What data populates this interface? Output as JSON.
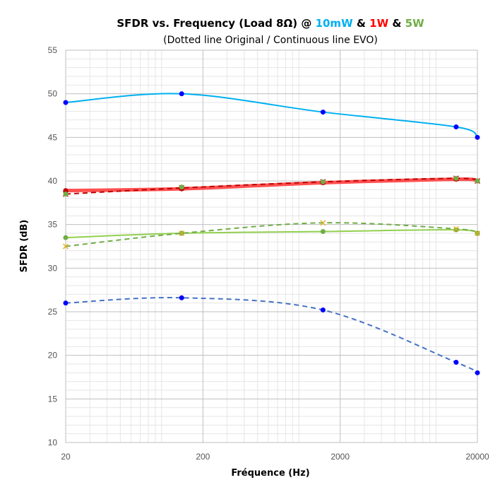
{
  "chart_data": {
    "type": "line",
    "title": {
      "prefix": "SFDR vs. Frequency (Load 8Ω) @ ",
      "segments": [
        {
          "text": "10mW",
          "color": "#00b0f0"
        },
        {
          "text": " & ",
          "color": "#000000"
        },
        {
          "text": "1W",
          "color": "#ff0000"
        },
        {
          "text": " & ",
          "color": "#000000"
        },
        {
          "text": "5W",
          "color": "#70ad47"
        }
      ]
    },
    "subtitle": "(Dotted line Original / Continuous line EVO)",
    "xlabel": "Fréquence (Hz)",
    "ylabel": "SFDR (dB)",
    "x_scale": "log",
    "xlim": [
      20,
      20000
    ],
    "ylim": [
      10,
      55
    ],
    "x_ticks": [
      20,
      200,
      2000,
      20000
    ],
    "x_tick_labels": [
      "20",
      "200",
      "2000",
      "20000"
    ],
    "y_ticks": [
      10,
      15,
      20,
      25,
      30,
      35,
      40,
      45,
      50,
      55
    ],
    "y_tick_labels": [
      "10",
      "15",
      "20",
      "25",
      "30",
      "35",
      "40",
      "45",
      "50",
      "55"
    ],
    "grid": true,
    "legend": "none",
    "series": [
      {
        "style": "solid",
        "color": "#00b0f0",
        "marker": "circle",
        "marker_color": "#0000ff",
        "x": [
          20,
          140,
          1500,
          14000,
          20000
        ],
        "y": [
          49.0,
          50.0,
          47.9,
          46.2,
          45.0
        ]
      },
      {
        "style": "dashed",
        "color": "#4472c4",
        "marker": "circle",
        "marker_color": "#0000ff",
        "x": [
          20,
          140,
          1500,
          14000,
          20000
        ],
        "y": [
          26.0,
          26.6,
          25.2,
          19.2,
          18.0
        ]
      },
      {
        "style": "solid",
        "color": "#ff5050",
        "marker": "circle",
        "marker_color": "#c00000",
        "width": 5,
        "x": [
          20,
          140,
          1500,
          14000,
          20000
        ],
        "y": [
          38.9,
          39.1,
          39.8,
          40.2,
          40.0
        ]
      },
      {
        "style": "dashed",
        "color": "#c00000",
        "marker": "x",
        "marker_color": "#c00000",
        "x": [
          20,
          140,
          1500,
          14000,
          20000
        ],
        "y": [
          38.5,
          39.2,
          39.9,
          40.3,
          40.0
        ]
      },
      {
        "style": "solid",
        "color": "#92d050",
        "marker": "circle",
        "marker_color": "#70ad47",
        "x": [
          20,
          140,
          1500,
          14000,
          20000
        ],
        "y": [
          33.5,
          34.0,
          34.2,
          34.4,
          34.0
        ]
      },
      {
        "style": "dashed",
        "color": "#70ad47",
        "marker": "x",
        "marker_color": "#e0b020",
        "x": [
          20,
          140,
          1500,
          14000,
          20000
        ],
        "y": [
          32.5,
          34.0,
          35.2,
          34.5,
          34.0
        ]
      },
      {
        "style": "none",
        "color": "#70ad47",
        "marker": "circle",
        "marker_color": "#70ad47",
        "x": [
          20,
          140,
          1500,
          14000,
          20000
        ],
        "y": [
          38.5,
          39.3,
          39.9,
          40.3,
          40.0
        ]
      }
    ]
  },
  "colors": {
    "plot_border": "#bfbfbf",
    "major_grid": "#bfbfbf",
    "minor_grid": "#e6e6e6"
  }
}
